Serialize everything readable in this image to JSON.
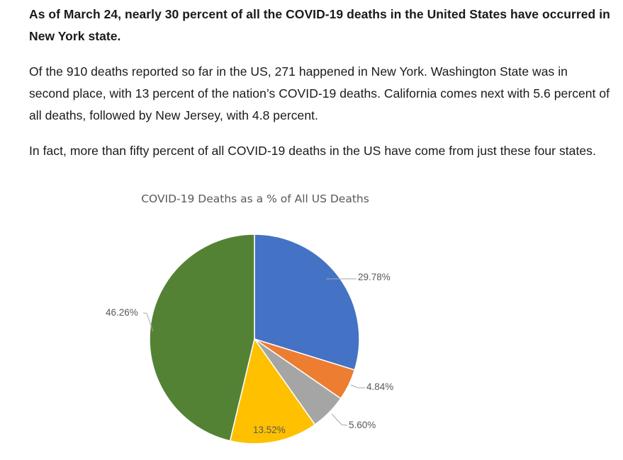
{
  "article": {
    "lead": "As of March 24, nearly 30 percent of all the COVID-19 deaths in the United States have occurred in New York state.",
    "paragraph_1": "Of the 910 deaths reported so far in the US, 271 happened in New York. Washington State was in second place, with 13 percent of the nation’s COVID-19 deaths. California comes next with 5.6 percent of all deaths, followed by New Jersey, with 4.8 percent.",
    "paragraph_2": "In fact, more than fifty percent of all COVID-19 deaths in the US have come from just these four states."
  },
  "chart_data": {
    "type": "pie",
    "title": "COVID-19 Deaths as a % of All US Deaths",
    "start_angle_deg": 0,
    "direction": "clockwise",
    "legend": "none",
    "slices": [
      {
        "label": "29.78%",
        "value": 29.78,
        "color": "#4472C4",
        "label_side": "outside"
      },
      {
        "label": "4.84%",
        "value": 4.84,
        "color": "#ED7D31",
        "label_side": "outside"
      },
      {
        "label": "5.60%",
        "value": 5.6,
        "color": "#A5A5A5",
        "label_side": "outside"
      },
      {
        "label": "13.52%",
        "value": 13.52,
        "color": "#FFC000",
        "label_side": "inside"
      },
      {
        "label": "46.26%",
        "value": 46.26,
        "color": "#548235",
        "label_side": "outside"
      }
    ]
  }
}
